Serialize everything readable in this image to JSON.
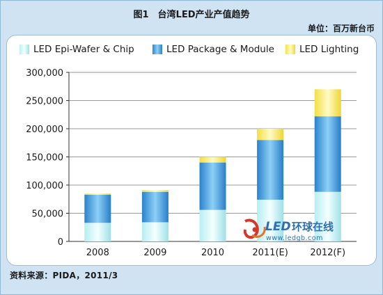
{
  "header": {
    "title": "图1　台湾LED产业产值趋势",
    "unit": "单位：百万新台币"
  },
  "footer": {
    "source": "资料来源：PIDA，2011/3"
  },
  "logo": {
    "brand": "LED",
    "brand_cn": "环球在线",
    "url": "www.ledgb.com"
  },
  "colors": {
    "epi": "#bff0f2",
    "package": "#2c86cf",
    "lighting": "#f4e24a"
  },
  "chart_data": {
    "type": "bar",
    "stacked": true,
    "title": "图1　台湾LED产业产值趋势",
    "ylabel": "单位：百万新台币",
    "categories": [
      "2008",
      "2009",
      "2010",
      "2011(E)",
      "2012(F)"
    ],
    "series": [
      {
        "name": "LED Epi-Wafer & Chip",
        "values": [
          33000,
          34000,
          56000,
          74000,
          88000
        ]
      },
      {
        "name": "LED Package & Module",
        "values": [
          50000,
          54000,
          84000,
          106000,
          134000
        ]
      },
      {
        "name": "LED Lighting",
        "values": [
          2000,
          3000,
          10000,
          20000,
          48000
        ]
      }
    ],
    "ylim": [
      0,
      300000
    ],
    "yticks": [
      0,
      50000,
      100000,
      150000,
      200000,
      250000,
      300000
    ],
    "ytick_labels": [
      "0",
      "50,000",
      "100,000",
      "150,000",
      "200,000",
      "250,000",
      "300,000"
    ],
    "grid": true,
    "legend": "top"
  }
}
